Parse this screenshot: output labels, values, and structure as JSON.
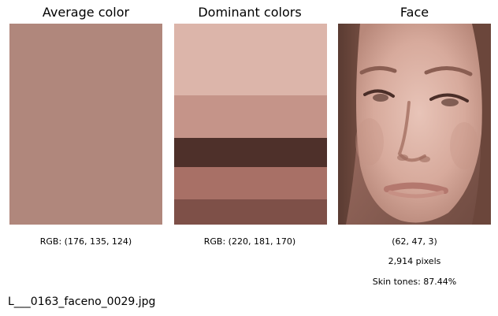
{
  "panels": {
    "average": {
      "title": "Average color",
      "caption": "RGB: (176, 135, 124)",
      "color": "#b0877c"
    },
    "dominant": {
      "title": "Dominant colors",
      "caption": "RGB: (220, 181, 170)",
      "bands": [
        {
          "color": "#dcb5aa",
          "fraction": 0.355
        },
        {
          "color": "#c59489",
          "fraction": 0.21
        },
        {
          "color": "#4e302a",
          "fraction": 0.145
        },
        {
          "color": "#a87066",
          "fraction": 0.16
        },
        {
          "color": "#7e5048",
          "fraction": 0.13
        }
      ]
    },
    "face": {
      "title": "Face",
      "caption_hsv": "(62, 47, 3)",
      "caption_pixels": "2,914 pixels",
      "caption_skin": "Skin tones: 87.44%"
    }
  },
  "filename": "L___0163_faceno_0029.jpg"
}
